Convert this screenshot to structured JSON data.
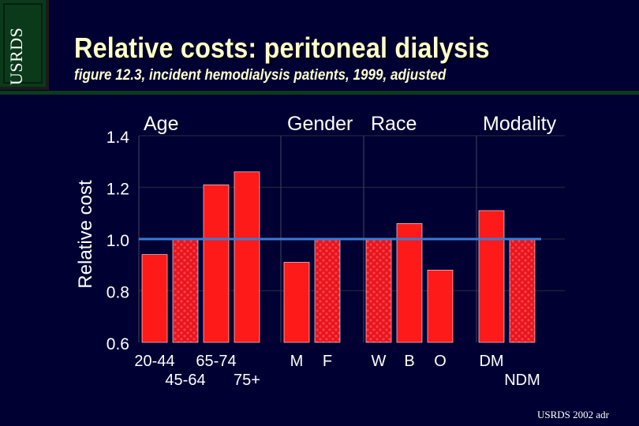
{
  "logo": {
    "text": "USRDS"
  },
  "header": {
    "title": "Relative costs: peritoneal dialysis",
    "subtitle": "figure 12.3, incident hemodialysis patients, 1999, adjusted"
  },
  "footer": {
    "text": "USRDS 2002 adr"
  },
  "colors": {
    "background": "#000033",
    "bar": "#ff1a1a",
    "bar_reference": "#e8141e",
    "reference_line": "#3a7bd5",
    "text": "#ffffff"
  },
  "chart_data": {
    "type": "bar",
    "ylabel": "Relative cost",
    "ylim": [
      0.6,
      1.4
    ],
    "yticks": [
      0.6,
      0.8,
      1.0,
      1.2,
      1.4
    ],
    "ytick_labels": [
      "0.6",
      "0.8",
      "1.0",
      "1.2",
      "1.4"
    ],
    "reference_value": 1.0,
    "groups": [
      {
        "name": "Age",
        "categories": [
          "20-44",
          "45-64",
          "65-74",
          "75+"
        ],
        "values": [
          0.94,
          1.0,
          1.21,
          1.26
        ],
        "reference_index": 1
      },
      {
        "name": "Gender",
        "categories": [
          "M",
          "F"
        ],
        "values": [
          0.91,
          1.0
        ],
        "reference_index": 1
      },
      {
        "name": "Race",
        "categories": [
          "W",
          "B",
          "O"
        ],
        "values": [
          1.0,
          1.06,
          0.88
        ],
        "reference_index": 0
      },
      {
        "name": "Modality",
        "categories": [
          "DM",
          "NDM"
        ],
        "values": [
          1.11,
          1.0
        ],
        "reference_index": 1
      }
    ]
  }
}
